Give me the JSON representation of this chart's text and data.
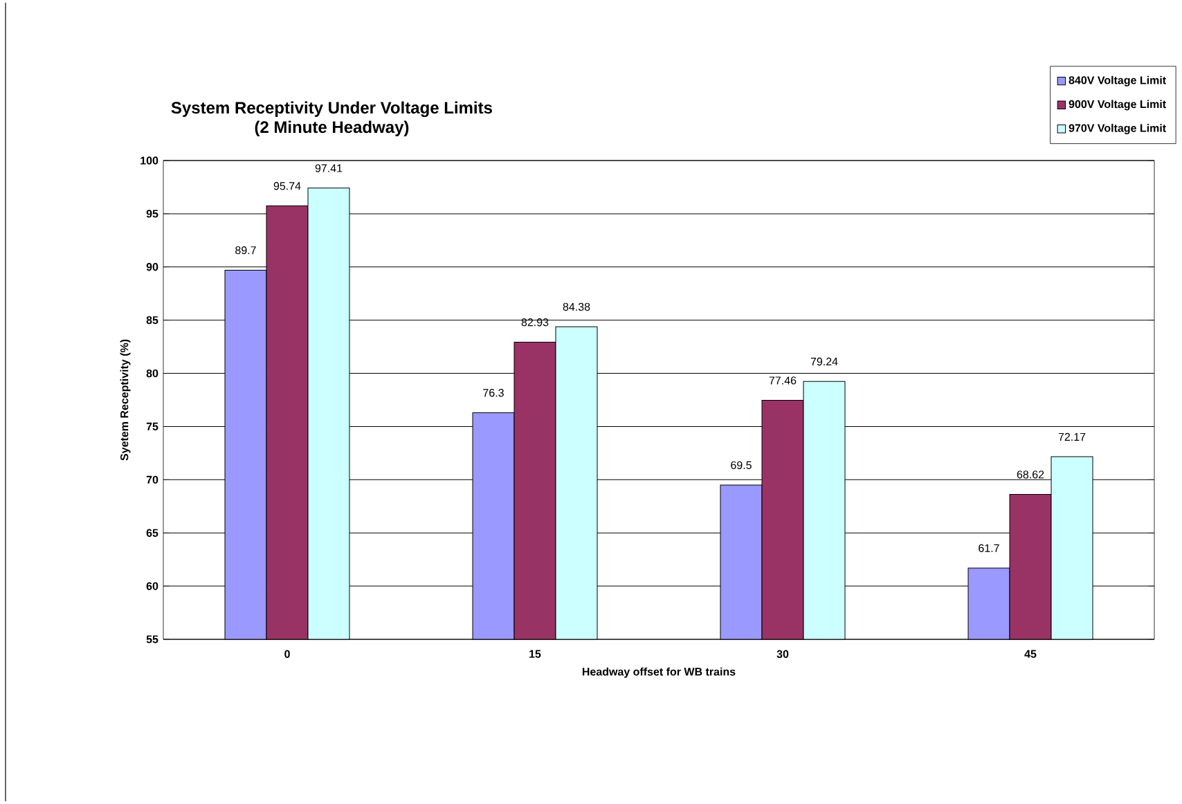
{
  "chart_data": {
    "type": "bar",
    "title": "System Receptivity Under Voltage Limits",
    "subtitle": "(2 Minute Headway)",
    "xlabel": "Headway offset for WB trains",
    "ylabel": "Syetem Receptivity (%)",
    "categories": [
      "0",
      "15",
      "30",
      "45"
    ],
    "series": [
      {
        "name": "840V Voltage Limit",
        "color": "#9999ff",
        "values": [
          89.7,
          76.3,
          69.5,
          61.7
        ]
      },
      {
        "name": "900V Voltage Limit",
        "color": "#993366",
        "values": [
          95.74,
          82.93,
          77.46,
          68.62
        ]
      },
      {
        "name": "970V Voltage Limit",
        "color": "#ccffff",
        "values": [
          97.41,
          84.38,
          79.24,
          72.17
        ]
      }
    ],
    "ylim": [
      55,
      100
    ],
    "yticks": [
      55,
      60,
      65,
      70,
      75,
      80,
      85,
      90,
      95,
      100
    ],
    "grid": "y",
    "legend": "top right",
    "data_labels": true
  }
}
